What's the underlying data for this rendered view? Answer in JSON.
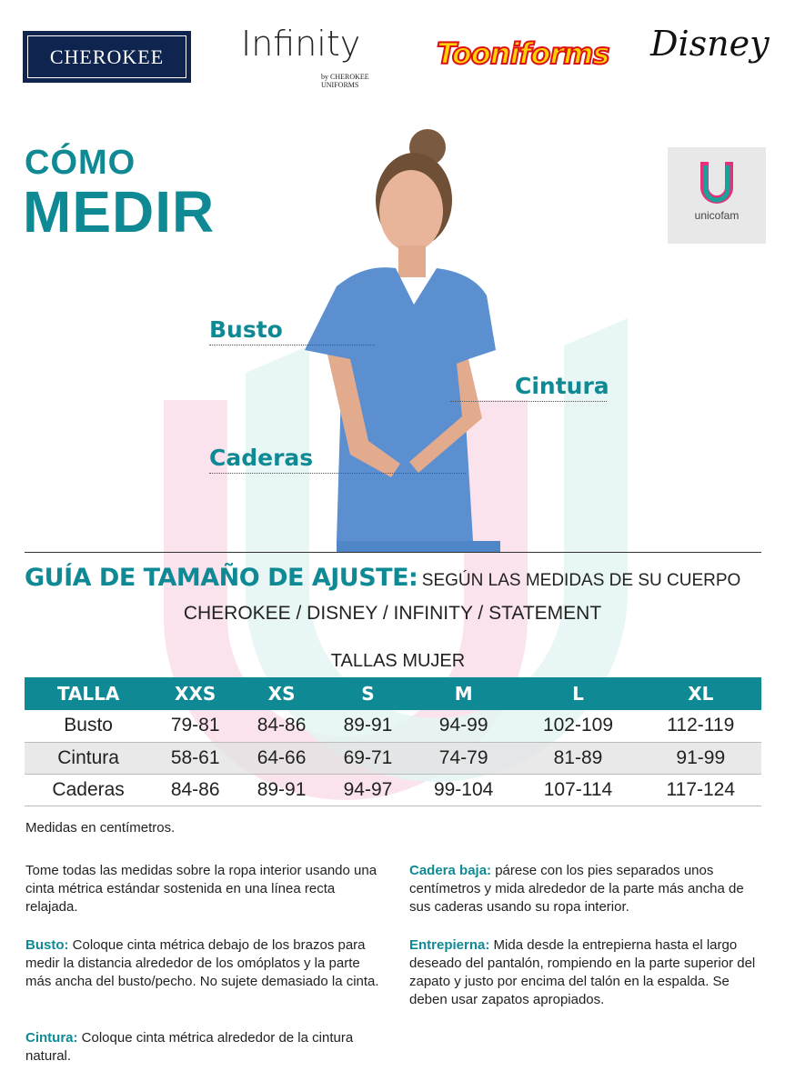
{
  "logos": {
    "cherokee": "CHEROKEE",
    "infinity": "Infinity",
    "infinity_sub": "by CHEROKEE UNIFORMS",
    "tooniforms": "Tooniforms",
    "disney": "Disney",
    "unicofam": "unicofam"
  },
  "heading": {
    "line1": "CÓMO",
    "line2": "MEDIR"
  },
  "labels": {
    "busto": "Busto",
    "cintura": "Cintura",
    "caderas": "Caderas"
  },
  "guide": {
    "title": "GUÍA DE TAMAÑO DE AJUSTE:",
    "subtitle": "SEGÚN LAS MEDIDAS DE SU CUERPO",
    "brands": "CHEROKEE / DISNEY / INFINITY / STATEMENT",
    "table_title": "TALLAS MUJER"
  },
  "table": {
    "headers": [
      "TALLA",
      "XXS",
      "XS",
      "S",
      "M",
      "L",
      "XL"
    ],
    "rows": [
      [
        "Busto",
        "79-81",
        "84-86",
        "89-91",
        "94-99",
        "102-109",
        "112-119"
      ],
      [
        "Cintura",
        "58-61",
        "64-66",
        "69-71",
        "74-79",
        "81-89",
        "91-99"
      ],
      [
        "Caderas",
        "84-86",
        "89-91",
        "94-97",
        "99-104",
        "107-114",
        "117-124"
      ]
    ]
  },
  "notes": {
    "units": "Medidas en centímetros.",
    "general": "Tome todas las medidas sobre la ropa interior usando una cinta métrica estándar sostenida en una línea recta relajada.",
    "busto_label": "Busto:",
    "busto": " Coloque cinta métrica debajo de los brazos para medir la distancia alrededor de los omóplatos y la parte más ancha del busto/pecho. No sujete demasiado la cinta.",
    "cintura_label": "Cintura:",
    "cintura": " Coloque cinta métrica alrededor de la cintura natural.",
    "cadera_label": "Cadera baja:",
    "cadera": " párese con los pies separados unos centímetros y mida alrededor de la parte más ancha de sus caderas usando su ropa interior.",
    "entrepierna_label": "Entrepierna:",
    "entrepierna": " Mida desde la entrepierna hasta el largo deseado del pantalón, rompiendo en la parte superior del zapato y justo por encima del talón en la espalda. Se deben usar zapatos apropiados."
  },
  "colors": {
    "accent": "#0f8a95",
    "header_bg": "#0f8a95",
    "cherokee_navy": "#0f2550"
  }
}
